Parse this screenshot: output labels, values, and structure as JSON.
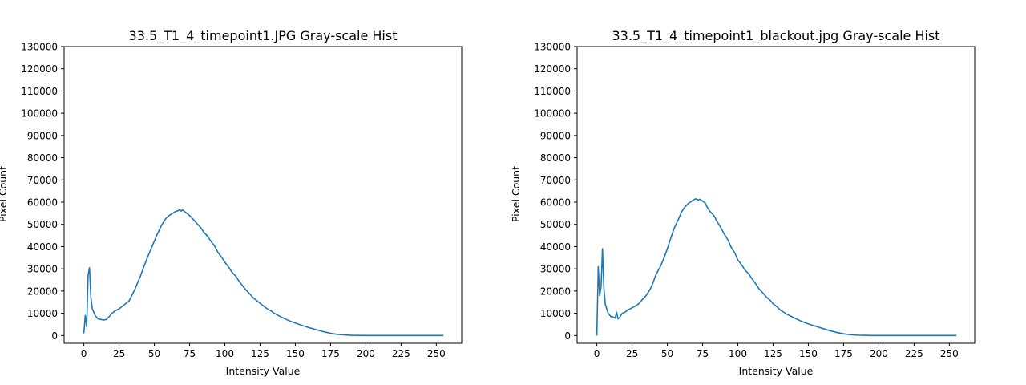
{
  "chart_data": [
    {
      "type": "line",
      "title": "33.5_T1_4_timepoint1.JPG Gray-scale Hist",
      "xlabel": "Intensity Value",
      "ylabel": "Pixel Count",
      "xlim": [
        -14,
        268
      ],
      "ylim": [
        -3500,
        130000
      ],
      "xticks": [
        0,
        25,
        50,
        75,
        100,
        125,
        150,
        175,
        200,
        225,
        250
      ],
      "yticks": [
        0,
        10000,
        20000,
        30000,
        40000,
        50000,
        60000,
        70000,
        80000,
        90000,
        100000,
        110000,
        120000,
        130000
      ],
      "grid": false,
      "series": [
        {
          "color": "#1f77b4",
          "x": [
            0,
            1,
            2,
            3,
            4,
            5,
            6,
            8,
            10,
            12,
            14,
            16,
            18,
            20,
            22,
            25,
            28,
            30,
            32,
            34,
            36,
            38,
            40,
            42,
            45,
            48,
            50,
            52,
            55,
            58,
            60,
            63,
            65,
            67,
            68,
            69,
            70,
            71,
            72,
            73,
            75,
            78,
            80,
            83,
            85,
            88,
            90,
            93,
            95,
            98,
            100,
            103,
            105,
            108,
            110,
            113,
            115,
            118,
            120,
            125,
            130,
            133,
            135,
            140,
            145,
            150,
            155,
            160,
            165,
            170,
            175,
            180,
            185,
            190,
            195,
            200,
            205,
            210,
            215,
            220,
            225,
            230,
            235,
            240,
            245,
            250,
            255
          ],
          "y": [
            1000,
            9000,
            4000,
            27000,
            30500,
            17000,
            12000,
            9000,
            7500,
            7200,
            7000,
            7200,
            8500,
            10000,
            11000,
            12000,
            13500,
            14500,
            15500,
            18000,
            20500,
            23500,
            26500,
            30000,
            35000,
            39500,
            42500,
            45500,
            49500,
            52500,
            53800,
            55000,
            55800,
            56200,
            56800,
            56000,
            56500,
            56000,
            55500,
            55000,
            54000,
            52000,
            50500,
            48500,
            46500,
            44500,
            42500,
            40000,
            37500,
            35000,
            33000,
            30500,
            28500,
            26500,
            24500,
            22000,
            20500,
            18500,
            17000,
            14500,
            12000,
            11000,
            10000,
            8300,
            6800,
            5600,
            4500,
            3500,
            2600,
            1700,
            1000,
            500,
            250,
            100,
            50,
            0,
            0,
            0,
            0,
            0,
            0,
            0,
            0,
            0,
            0,
            0,
            0
          ]
        }
      ]
    },
    {
      "type": "line",
      "title": "33.5_T1_4_timepoint1_blackout.jpg Gray-scale Hist",
      "xlabel": "Intensity Value",
      "ylabel": "Pixel Count",
      "xlim": [
        -14,
        268
      ],
      "ylim": [
        -3500,
        130000
      ],
      "xticks": [
        0,
        25,
        50,
        75,
        100,
        125,
        150,
        175,
        200,
        225,
        250
      ],
      "yticks": [
        0,
        10000,
        20000,
        30000,
        40000,
        50000,
        60000,
        70000,
        80000,
        90000,
        100000,
        110000,
        120000,
        130000
      ],
      "grid": false,
      "series": [
        {
          "color": "#1f77b4",
          "x": [
            0,
            1,
            2,
            3,
            4,
            5,
            6,
            8,
            10,
            12,
            13,
            14,
            15,
            16,
            18,
            20,
            22,
            25,
            28,
            30,
            32,
            35,
            38,
            40,
            42,
            45,
            48,
            50,
            52,
            55,
            58,
            60,
            62,
            65,
            68,
            70,
            72,
            73,
            75,
            77,
            78,
            80,
            83,
            85,
            88,
            90,
            93,
            95,
            98,
            100,
            103,
            105,
            108,
            110,
            113,
            115,
            118,
            120,
            123,
            125,
            128,
            130,
            133,
            135,
            140,
            145,
            150,
            155,
            160,
            165,
            170,
            175,
            180,
            185,
            190,
            195,
            200,
            205,
            210,
            215,
            220,
            225,
            230,
            235,
            240,
            245,
            250,
            255
          ],
          "y": [
            0,
            31000,
            18000,
            22000,
            39000,
            21000,
            14000,
            10000,
            8500,
            8200,
            7800,
            10500,
            7500,
            8000,
            10000,
            10500,
            11500,
            12500,
            13500,
            14500,
            16000,
            18000,
            21000,
            24000,
            27500,
            31000,
            35500,
            39000,
            43000,
            48500,
            52500,
            55500,
            57500,
            59500,
            60800,
            61500,
            61000,
            61300,
            60500,
            59500,
            58000,
            56000,
            54000,
            51500,
            48500,
            46000,
            43000,
            40000,
            37000,
            34000,
            31500,
            29500,
            27500,
            25500,
            23000,
            21000,
            19000,
            17500,
            15800,
            14300,
            12800,
            11500,
            10300,
            9500,
            7900,
            6400,
            5200,
            4200,
            3200,
            2200,
            1400,
            750,
            350,
            150,
            80,
            0,
            0,
            0,
            0,
            0,
            0,
            0,
            0,
            0,
            0,
            0,
            0,
            0
          ]
        }
      ]
    }
  ]
}
